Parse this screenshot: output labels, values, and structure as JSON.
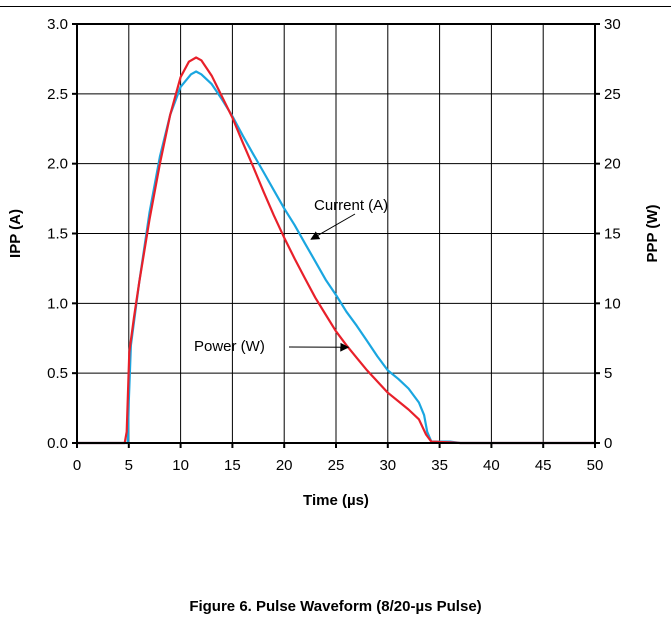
{
  "figure": {
    "caption": "Figure 6. Pulse Waveform (8/20-µs Pulse)"
  },
  "chart_data": {
    "type": "line",
    "xlabel": "Time (µs)",
    "ylabel_left": "IPP (A)",
    "ylabel_right": "PPP (W)",
    "xlim": [
      0,
      50
    ],
    "ylim_left": [
      0,
      3.0
    ],
    "ylim_right": [
      0,
      30
    ],
    "grid": true,
    "x_ticks": [
      "0",
      "5",
      "10",
      "15",
      "20",
      "25",
      "30",
      "35",
      "40",
      "45",
      "50"
    ],
    "y_ticks_left": [
      "0.0",
      "0.5",
      "1.0",
      "1.5",
      "2.0",
      "2.5",
      "3.0"
    ],
    "y_ticks_right": [
      "0",
      "5",
      "10",
      "15",
      "20",
      "25",
      "30"
    ],
    "series": [
      {
        "name": "Current (A)",
        "axis": "left",
        "color": "#1aa6e0",
        "points": [
          [
            0,
            0.0
          ],
          [
            4.9,
            0.0
          ],
          [
            5.0,
            0.3
          ],
          [
            5.2,
            0.7
          ],
          [
            6,
            1.15
          ],
          [
            7,
            1.65
          ],
          [
            8,
            2.05
          ],
          [
            9,
            2.35
          ],
          [
            10,
            2.55
          ],
          [
            11,
            2.64
          ],
          [
            11.5,
            2.66
          ],
          [
            12,
            2.64
          ],
          [
            13,
            2.57
          ],
          [
            14,
            2.46
          ],
          [
            15,
            2.34
          ],
          [
            16,
            2.2
          ],
          [
            17,
            2.07
          ],
          [
            18,
            1.94
          ],
          [
            19,
            1.81
          ],
          [
            20,
            1.68
          ],
          [
            21,
            1.56
          ],
          [
            22,
            1.43
          ],
          [
            23,
            1.3
          ],
          [
            24,
            1.17
          ],
          [
            25,
            1.06
          ],
          [
            26,
            0.94
          ],
          [
            27,
            0.84
          ],
          [
            28,
            0.73
          ],
          [
            29,
            0.62
          ],
          [
            30,
            0.52
          ],
          [
            31,
            0.46
          ],
          [
            32,
            0.39
          ],
          [
            33,
            0.29
          ],
          [
            33.5,
            0.2
          ],
          [
            33.8,
            0.08
          ],
          [
            34.2,
            0.01
          ],
          [
            36,
            0.01
          ],
          [
            37,
            0.0
          ],
          [
            50,
            0.0
          ]
        ]
      },
      {
        "name": "Power (W)",
        "axis": "right",
        "color": "#e8202a",
        "points": [
          [
            0,
            0.0
          ],
          [
            4.6,
            0.0
          ],
          [
            4.8,
            0.8
          ],
          [
            4.95,
            4.3
          ],
          [
            5.05,
            6.5
          ],
          [
            5.5,
            9.0
          ],
          [
            6,
            11.5
          ],
          [
            7,
            16.0
          ],
          [
            8,
            20.0
          ],
          [
            9,
            23.5
          ],
          [
            10,
            26.2
          ],
          [
            10.8,
            27.3
          ],
          [
            11.5,
            27.6
          ],
          [
            12,
            27.4
          ],
          [
            13,
            26.3
          ],
          [
            14,
            24.8
          ],
          [
            15,
            23.3
          ],
          [
            16,
            21.5
          ],
          [
            17,
            19.8
          ],
          [
            18,
            18.0
          ],
          [
            19,
            16.3
          ],
          [
            20,
            14.7
          ],
          [
            21,
            13.2
          ],
          [
            22,
            11.8
          ],
          [
            23,
            10.4
          ],
          [
            24,
            9.2
          ],
          [
            25,
            8.0
          ],
          [
            26,
            7.0
          ],
          [
            27,
            6.1
          ],
          [
            28,
            5.2
          ],
          [
            29,
            4.4
          ],
          [
            30,
            3.6
          ],
          [
            31,
            3.0
          ],
          [
            32,
            2.4
          ],
          [
            33,
            1.7
          ],
          [
            33.7,
            0.6
          ],
          [
            34.2,
            0.1
          ],
          [
            36,
            0.05
          ],
          [
            37,
            0.0
          ],
          [
            50,
            0.0
          ]
        ]
      }
    ],
    "annotations": [
      {
        "text": "Current (A)",
        "series": "Current (A)",
        "arrow_to": [
          22.3,
          1.43
        ]
      },
      {
        "text": "Power (W)",
        "series": "Power (W)",
        "arrow_to": [
          26.0,
          0.7
        ]
      }
    ]
  }
}
